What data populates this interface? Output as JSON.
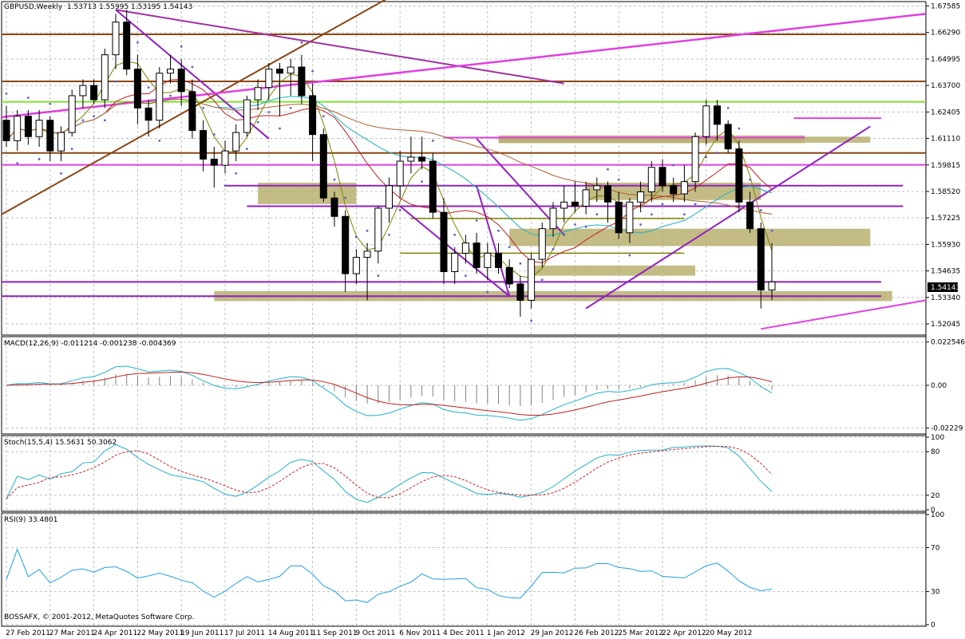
{
  "window": {
    "symbol": "GBPUSD,Weekly",
    "ohlc": "1.53713 1.55995 1.53195 1.54143",
    "current_price": "1.54143",
    "copyright": "BOSSAFX, © 2001-2012, MetaQuotes Software Corp."
  },
  "indicators": {
    "macd_label": "MACD(12,26,9) -0.011214 -0.001238 -0.004369",
    "stoch_label": "Stoch(15,5,4) 15.5631 50.3062",
    "rsi_label": "RSI(9) 33.4801"
  },
  "colors": {
    "bull_candle": "#ffffff",
    "bear_candle": "#000000",
    "grid": "#c0c0c0",
    "magenta_line": "#e040e0",
    "purple_line": "#9020c0",
    "brown_line": "#8b4513",
    "green_line": "#80e030",
    "zone_fill": "#b8b070",
    "macd_main": "#20b0d0",
    "macd_signal": "#c02020",
    "stoch_main": "#20b0d0",
    "stoch_signal": "#d02020",
    "rsi_line": "#20a0e0"
  },
  "chart_data": [
    {
      "type": "candlestick",
      "title": "GBPUSD,Weekly",
      "price_ticks": [
        "1.67585",
        "1.66290",
        "1.64995",
        "1.63700",
        "1.62405",
        "1.61110",
        "1.59815",
        "1.58520",
        "1.57225",
        "1.55930",
        "1.54635",
        "1.53340",
        "1.52045"
      ],
      "ylim": [
        1.515,
        1.678
      ],
      "x_tick_labels": [
        "27 Feb 2011",
        "27 Mar 2011",
        "24 Apr 2011",
        "22 May 2011",
        "19 Jun 2011",
        "17 Jul 2011",
        "14 Aug 2011",
        "11 Sep 2011",
        "9 Oct 2011",
        "6 Nov 2011",
        "4 Dec 2011",
        "1 Jan 2012",
        "29 Jan 2012",
        "26 Feb 2012",
        "25 Mar 2012",
        "22 Apr 2012",
        "20 May 2012"
      ],
      "candles": [
        [
          1.62,
          1.627,
          1.607,
          1.61
        ],
        [
          1.61,
          1.625,
          1.605,
          1.622
        ],
        [
          1.622,
          1.625,
          1.608,
          1.612
        ],
        [
          1.612,
          1.625,
          1.607,
          1.62
        ],
        [
          1.62,
          1.622,
          1.6,
          1.605
        ],
        [
          1.605,
          1.617,
          1.6,
          1.614
        ],
        [
          1.614,
          1.635,
          1.612,
          1.632
        ],
        [
          1.632,
          1.64,
          1.626,
          1.637
        ],
        [
          1.637,
          1.64,
          1.628,
          1.63
        ],
        [
          1.63,
          1.655,
          1.626,
          1.652
        ],
        [
          1.652,
          1.672,
          1.645,
          1.668
        ],
        [
          1.668,
          1.674,
          1.642,
          1.645
        ],
        [
          1.645,
          1.652,
          1.618,
          1.626
        ],
        [
          1.626,
          1.63,
          1.612,
          1.62
        ],
        [
          1.62,
          1.646,
          1.616,
          1.643
        ],
        [
          1.643,
          1.652,
          1.638,
          1.645
        ],
        [
          1.645,
          1.65,
          1.627,
          1.634
        ],
        [
          1.634,
          1.64,
          1.611,
          1.615
        ],
        [
          1.615,
          1.62,
          1.595,
          1.601
        ],
        [
          1.601,
          1.607,
          1.587,
          1.598
        ],
        [
          1.598,
          1.61,
          1.594,
          1.605
        ],
        [
          1.605,
          1.618,
          1.6,
          1.614
        ],
        [
          1.614,
          1.632,
          1.612,
          1.63
        ],
        [
          1.63,
          1.64,
          1.625,
          1.636
        ],
        [
          1.636,
          1.648,
          1.63,
          1.645
        ],
        [
          1.645,
          1.648,
          1.622,
          1.643
        ],
        [
          1.643,
          1.65,
          1.632,
          1.646
        ],
        [
          1.646,
          1.652,
          1.628,
          1.632
        ],
        [
          1.632,
          1.638,
          1.6,
          1.613
        ],
        [
          1.613,
          1.616,
          1.58,
          1.582
        ],
        [
          1.582,
          1.585,
          1.568,
          1.573
        ],
        [
          1.573,
          1.576,
          1.536,
          1.545
        ],
        [
          1.545,
          1.557,
          1.54,
          1.553
        ],
        [
          1.553,
          1.56,
          1.532,
          1.556
        ],
        [
          1.556,
          1.578,
          1.55,
          1.577
        ],
        [
          1.577,
          1.592,
          1.57,
          1.588
        ],
        [
          1.588,
          1.605,
          1.582,
          1.6
        ],
        [
          1.6,
          1.612,
          1.594,
          1.602
        ],
        [
          1.602,
          1.612,
          1.596,
          1.6
        ],
        [
          1.6,
          1.604,
          1.572,
          1.575
        ],
        [
          1.575,
          1.582,
          1.54,
          1.546
        ],
        [
          1.546,
          1.558,
          1.54,
          1.555
        ],
        [
          1.555,
          1.564,
          1.55,
          1.56
        ],
        [
          1.56,
          1.565,
          1.545,
          1.548
        ],
        [
          1.548,
          1.56,
          1.542,
          1.555
        ],
        [
          1.555,
          1.56,
          1.545,
          1.548
        ],
        [
          1.548,
          1.552,
          1.538,
          1.54
        ],
        [
          1.54,
          1.544,
          1.524,
          1.532
        ],
        [
          1.532,
          1.555,
          1.528,
          1.552
        ],
        [
          1.552,
          1.57,
          1.548,
          1.567
        ],
        [
          1.567,
          1.58,
          1.563,
          1.577
        ],
        [
          1.577,
          1.588,
          1.57,
          1.58
        ],
        [
          1.58,
          1.59,
          1.575,
          1.578
        ],
        [
          1.578,
          1.59,
          1.574,
          1.586
        ],
        [
          1.586,
          1.592,
          1.58,
          1.588
        ],
        [
          1.588,
          1.59,
          1.57,
          1.58
        ],
        [
          1.58,
          1.585,
          1.562,
          1.565
        ],
        [
          1.565,
          1.582,
          1.56,
          1.58
        ],
        [
          1.58,
          1.59,
          1.575,
          1.585
        ],
        [
          1.585,
          1.6,
          1.58,
          1.597
        ],
        [
          1.597,
          1.601,
          1.585,
          1.588
        ],
        [
          1.588,
          1.592,
          1.58,
          1.584
        ],
        [
          1.584,
          1.598,
          1.58,
          1.59
        ],
        [
          1.59,
          1.614,
          1.585,
          1.612
        ],
        [
          1.612,
          1.63,
          1.608,
          1.627
        ],
        [
          1.627,
          1.63,
          1.61,
          1.618
        ],
        [
          1.618,
          1.62,
          1.604,
          1.606
        ],
        [
          1.606,
          1.61,
          1.575,
          1.58
        ],
        [
          1.58,
          1.585,
          1.565,
          1.567
        ],
        [
          1.567,
          1.57,
          1.528,
          1.537
        ],
        [
          1.537,
          1.56,
          1.532,
          1.541
        ]
      ]
    },
    {
      "type": "line",
      "title": "MACD(12,26,9)",
      "y_ticks": [
        "0.022546",
        "0.00",
        "-0.02229"
      ],
      "ylim": [
        -0.0245,
        0.0245
      ]
    },
    {
      "type": "line",
      "title": "Stoch(15,5,4)",
      "y_ticks": [
        "100",
        "80",
        "20",
        "0"
      ],
      "ylim": [
        0,
        100
      ]
    },
    {
      "type": "line",
      "title": "RSI(9)",
      "y_ticks": [
        "100",
        "70",
        "30",
        "0"
      ],
      "ylim": [
        0,
        100
      ]
    }
  ]
}
